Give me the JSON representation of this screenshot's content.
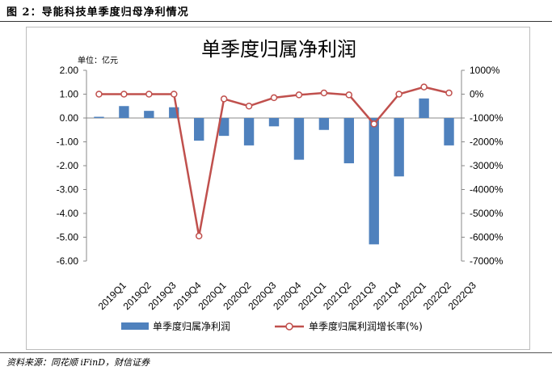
{
  "caption": "图 2：导能科技单季度归母净利情况",
  "source": "资料来源：同花顺 iFinD，财信证券",
  "chart_data": {
    "type": "bar",
    "title": "单季度归属净利润",
    "unit_label": "单位：亿元",
    "categories": [
      "2019Q1",
      "2019Q2",
      "2019Q3",
      "2019Q4",
      "2020Q1",
      "2020Q2",
      "2020Q3",
      "2020Q4",
      "2021Q1",
      "2021Q2",
      "2021Q3",
      "2021Q4",
      "2022Q1",
      "2022Q2",
      "2022Q3"
    ],
    "left_axis": {
      "ylim": [
        -6.0,
        2.0
      ],
      "ticks": [
        "2.00",
        "1.00",
        "0.00",
        "-1.00",
        "-2.00",
        "-3.00",
        "-4.00",
        "-5.00",
        "-6.00"
      ]
    },
    "right_axis": {
      "ylim": [
        -7000,
        1000
      ],
      "ticks": [
        "1000%",
        "0%",
        "-1000%",
        "-2000%",
        "-3000%",
        "-4000%",
        "-5000%",
        "-6000%",
        "-7000%"
      ]
    },
    "series": [
      {
        "name": "单季度归属净利润",
        "type": "bar",
        "axis": "left",
        "color": "#4f81bd",
        "values": [
          0.05,
          0.5,
          0.3,
          0.45,
          -0.95,
          -0.75,
          -1.15,
          -0.35,
          -1.75,
          -0.5,
          -1.9,
          -5.3,
          -2.45,
          0.82,
          -1.15
        ]
      },
      {
        "name": "单季度归属利润增长率(%)",
        "type": "line",
        "axis": "right",
        "color": "#c0504d",
        "values": [
          0,
          0,
          0,
          0,
          -5950,
          -200,
          -500,
          -150,
          -30,
          50,
          -30,
          -1250,
          0,
          300,
          50
        ]
      }
    ],
    "legend_position": "bottom",
    "grid": false
  }
}
